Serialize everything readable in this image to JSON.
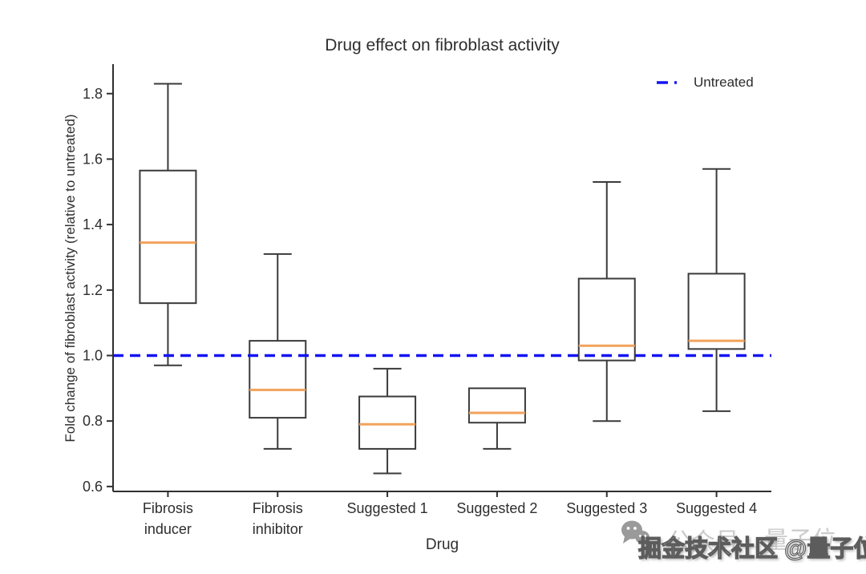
{
  "chart_data": {
    "type": "boxplot",
    "title": "Drug effect on fibroblast activity",
    "xlabel": "Drug",
    "ylabel": "Fold change of fibroblast activity (relative to untreated)",
    "categories": [
      "Fibrosis inducer",
      "Fibrosis inhibitor",
      "Suggested 1",
      "Suggested 2",
      "Suggested 3",
      "Suggested 4"
    ],
    "category_label_lines": [
      [
        "Fibrosis",
        "inducer"
      ],
      [
        "Fibrosis",
        "inhibitor"
      ],
      [
        "Suggested 1"
      ],
      [
        "Suggested 2"
      ],
      [
        "Suggested 3"
      ],
      [
        "Suggested 4"
      ]
    ],
    "series": [
      {
        "category": "Fibrosis inducer",
        "whisker_low": 0.97,
        "q1": 1.16,
        "median": 1.345,
        "q3": 1.565,
        "whisker_high": 1.83
      },
      {
        "category": "Fibrosis inhibitor",
        "whisker_low": 0.715,
        "q1": 0.81,
        "median": 0.895,
        "q3": 1.045,
        "whisker_high": 1.31
      },
      {
        "category": "Suggested 1",
        "whisker_low": 0.64,
        "q1": 0.715,
        "median": 0.79,
        "q3": 0.875,
        "whisker_high": 0.96
      },
      {
        "category": "Suggested 2",
        "whisker_low": 0.715,
        "q1": 0.795,
        "median": 0.825,
        "q3": 0.9,
        "whisker_high": 0.9
      },
      {
        "category": "Suggested 3",
        "whisker_low": 0.8,
        "q1": 0.985,
        "median": 1.03,
        "q3": 1.235,
        "whisker_high": 1.53
      },
      {
        "category": "Suggested 4",
        "whisker_low": 0.83,
        "q1": 1.02,
        "median": 1.045,
        "q3": 1.25,
        "whisker_high": 1.57
      }
    ],
    "yticks": [
      0.6,
      0.8,
      1.0,
      1.2,
      1.4,
      1.6,
      1.8
    ],
    "ylim": [
      0.585,
      1.89
    ],
    "grid": false,
    "reference_line": {
      "value": 1.0,
      "label": "Untreated",
      "style": "dash-dot"
    },
    "legend_position": "upper right",
    "colors": {
      "box_edge": "#3a3a3a",
      "median": "#f2a25c",
      "reference": "#1414f2",
      "text": "#2e2e2e"
    }
  },
  "legend": {
    "label": "Untreated"
  },
  "watermark": {
    "icon": "wechat-icon",
    "ghost_text_1": "公众号",
    "ghost_text_2": "量子位",
    "text": "掘金技术社区 @量子位"
  }
}
